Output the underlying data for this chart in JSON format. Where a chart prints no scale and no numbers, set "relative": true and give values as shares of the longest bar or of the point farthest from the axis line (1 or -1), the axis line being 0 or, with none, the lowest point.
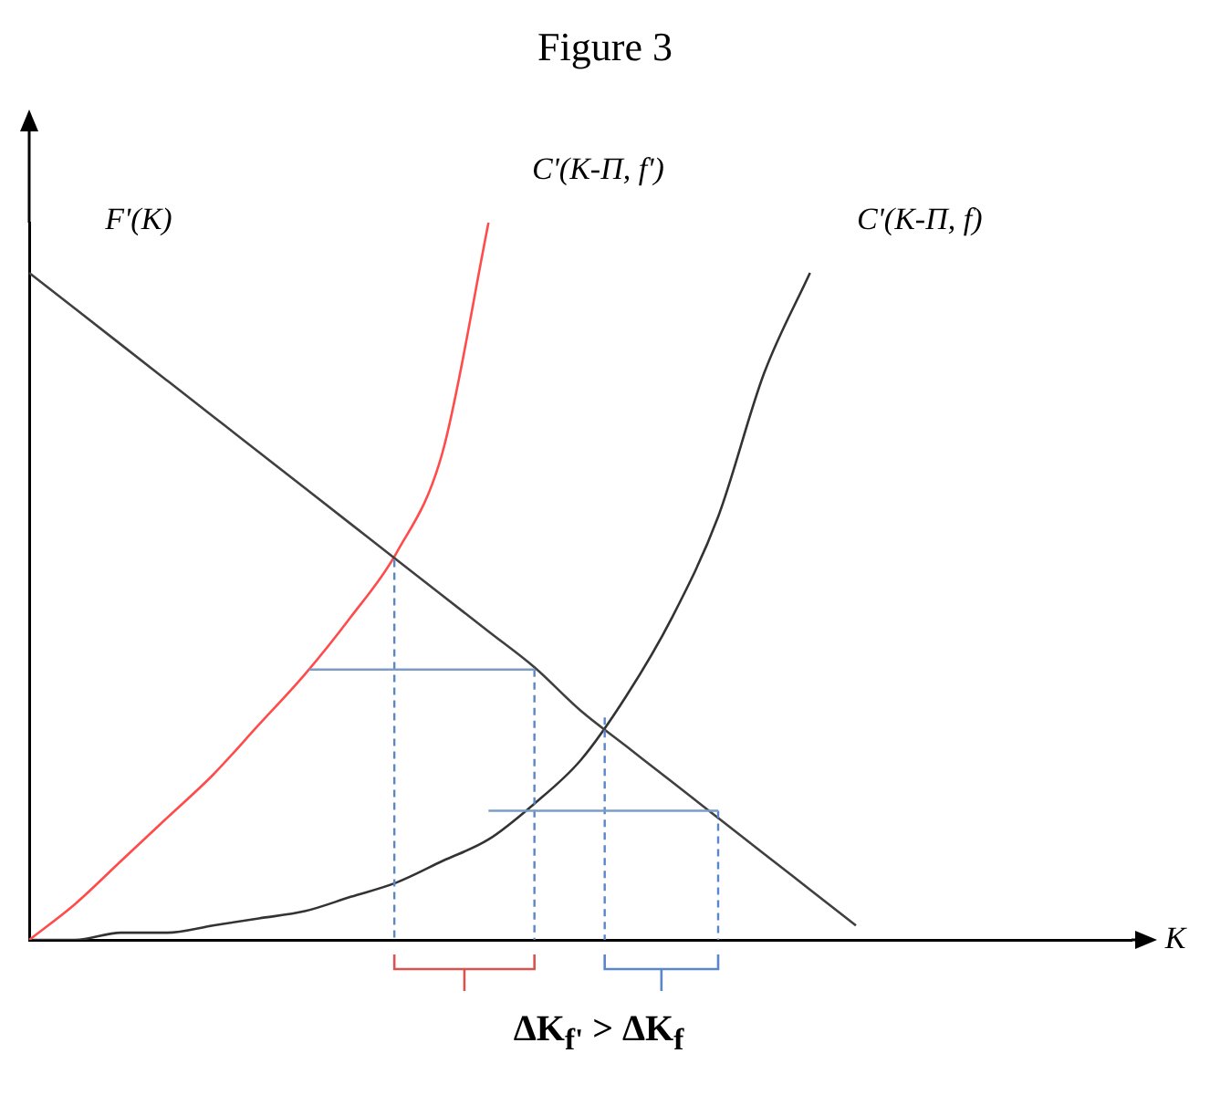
{
  "chart_data": {
    "type": "line",
    "title": "Figure 3",
    "xlabel": "K",
    "categories": [
      null,
      null,
      null,
      null,
      null,
      null,
      null,
      null,
      null,
      null,
      null,
      null,
      null,
      null,
      null,
      null,
      null,
      null,
      null,
      null,
      null,
      null,
      null,
      null,
      null
    ],
    "relative": true,
    "grid": false,
    "legend": false,
    "tick_labels": false,
    "marker": "none",
    "line_style": "solid",
    "annotations": [
      "ΔK$_{f'}$ > ΔK$_{f}$"
    ],
    "series": [
      {
        "name": "F'(K)",
        "color": "#404040",
        "values": [
          0.93,
          0.88,
          0.83,
          0.78,
          0.73,
          0.68,
          0.63,
          0.58,
          0.53,
          0.48,
          0.43,
          0.38,
          0.32,
          0.27,
          0.22,
          0.17,
          0.12,
          0.07,
          0.02,
          null,
          null,
          null,
          null,
          null,
          null
        ]
      },
      {
        "name": "C'(K-Π, f')",
        "color": "#ff4b4b",
        "values": [
          0,
          0.05,
          0.11,
          0.17,
          0.23,
          0.3,
          0.37,
          0.45,
          0.54,
          0.68,
          1,
          null,
          null,
          null,
          null,
          null,
          null,
          null,
          null,
          null,
          null,
          null,
          null,
          null,
          null
        ]
      },
      {
        "name": "C'(K-Π, f)",
        "color": "#333333",
        "values": [
          0,
          0,
          0.01,
          0.01,
          0.02,
          0.03,
          0.04,
          0.06,
          0.08,
          0.11,
          0.14,
          0.19,
          0.25,
          0.34,
          0.45,
          0.59,
          0.79,
          0.93,
          null,
          null,
          null,
          null,
          null,
          null,
          null
        ]
      }
    ]
  }
}
